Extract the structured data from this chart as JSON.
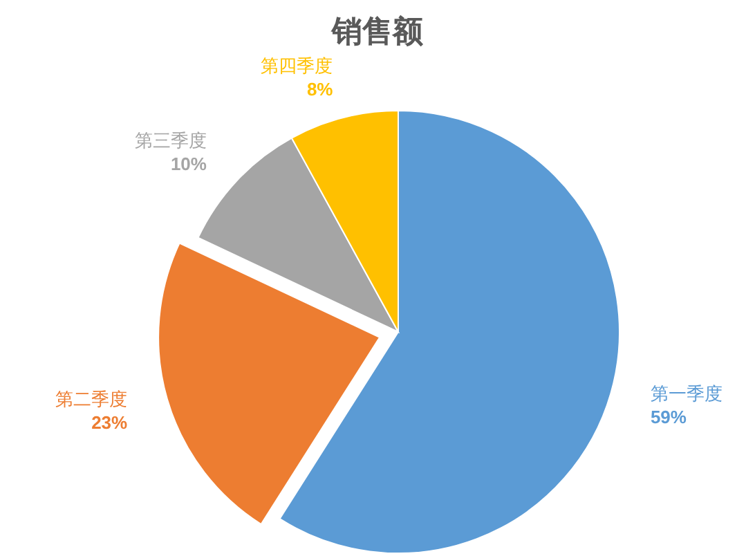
{
  "chart_data": {
    "type": "pie",
    "title": "销售额",
    "categories": [
      "第一季度",
      "第二季度",
      "第三季度",
      "第四季度"
    ],
    "values": [
      59,
      23,
      10,
      8
    ],
    "value_labels": [
      "59%",
      "23%",
      "10%",
      "8%"
    ],
    "colors": [
      "#5b9bd5",
      "#ed7d31",
      "#a5a5a5",
      "#ffc000"
    ],
    "legend": false
  }
}
